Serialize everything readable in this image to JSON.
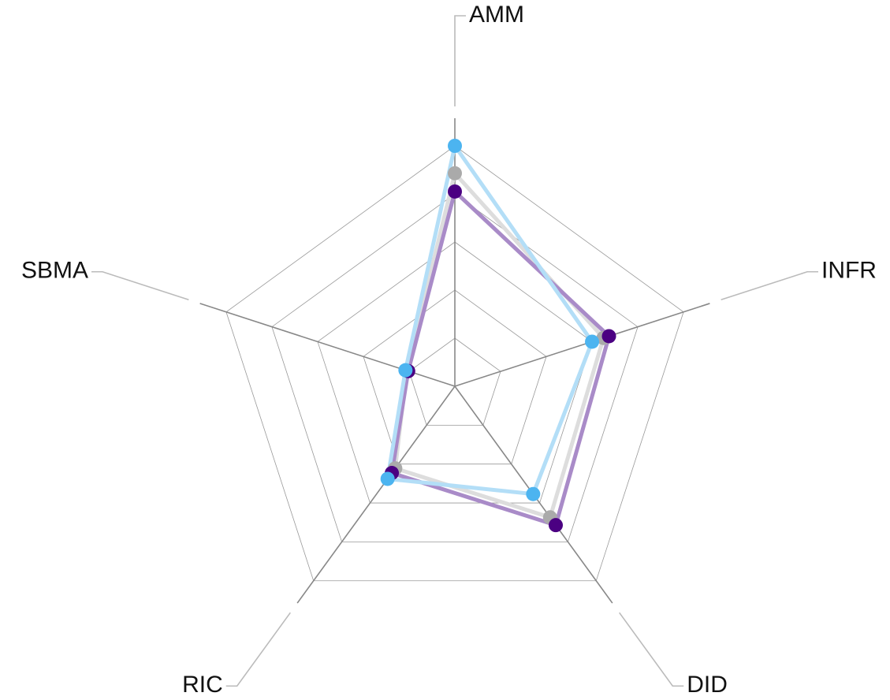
{
  "chart_data": {
    "type": "radar",
    "categories": [
      "AMM",
      "INFR",
      "DID",
      "RIC",
      "SBMA"
    ],
    "ylim": [
      0,
      5
    ],
    "yticks": [
      1,
      2,
      3,
      4,
      5
    ],
    "grid": true,
    "series": [
      {
        "color": "#aaaaaa",
        "line_color": "#dddddd",
        "values": [
          4.43,
          3.25,
          3.37,
          2.11,
          1.05
        ]
      },
      {
        "color": "#4b0082",
        "line_color": "#a98bc8",
        "values": [
          4.05,
          3.37,
          3.57,
          2.23,
          1.02
        ]
      },
      {
        "color": "#4cb4f0",
        "line_color": "#b3def7",
        "values": [
          5.0,
          3.0,
          2.77,
          2.38,
          1.08
        ]
      }
    ]
  }
}
